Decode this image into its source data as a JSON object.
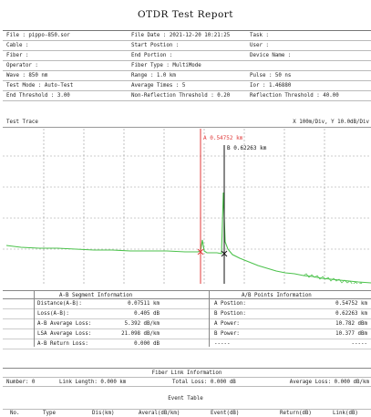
{
  "title": "OTDR Test Report",
  "params": {
    "rows": [
      [
        "File : pippo-850.sor",
        "File Date : 2021-12-20 10:21:25",
        "Task :"
      ],
      [
        "Cable :",
        "Start Postion :",
        "User :"
      ],
      [
        "Fiber :",
        "End Portion :",
        "Device Name :"
      ],
      [
        "Operator :",
        "Fiber Type : MultiMode",
        ""
      ],
      [
        "Wave : 850 nm",
        "Range : 1.0 km",
        "Pulse : 50 ns"
      ],
      [
        "Test Mode : Auto-Test",
        "Average Times : 5",
        "Ior : 1.46880"
      ],
      [
        "End Threshold : 3.00",
        "Non-Reflection Threshold : 0.20",
        "Reflection Threshold : 40.00"
      ]
    ]
  },
  "trace": {
    "label": "Test Trace",
    "scale": "X 100m/Div, Y 10.0dB/Div",
    "marker_a": "A 0.54752 km",
    "marker_b": "B 0.62263 km",
    "colors": {
      "trace": "#4cc24c",
      "marker_a": "#e03a3a",
      "marker_b": "#111111",
      "grid": "#999999"
    }
  },
  "ab_segment": {
    "title": "A-B Segment Information",
    "rows": [
      [
        "Distance(A-B):",
        "0.07511 km"
      ],
      [
        "Loss(A-B):",
        "0.405 dB"
      ],
      [
        "A-B Average Loss:",
        "5.392 dB/km"
      ],
      [
        "LSA Average Loss:",
        "21.098 dB/km"
      ],
      [
        "A-B Return Loss:",
        "0.000 dB"
      ]
    ]
  },
  "ab_points": {
    "title": "A/B Points Information",
    "rows": [
      [
        "A Postion:",
        "0.54752 km"
      ],
      [
        "B Postion:",
        "0.62263 km"
      ],
      [
        "A Power:",
        "10.782 dBm"
      ],
      [
        "B Power:",
        "10.377 dBm"
      ],
      [
        "-----",
        "-----"
      ]
    ]
  },
  "fiber_link": {
    "title": "Fiber Link Information",
    "number": "Number: 0",
    "length": "Link Length: 0.000 km",
    "total_loss": "Total Loss: 0.000 dB",
    "avg_loss": "Average Loss: 0.000 dB/km"
  },
  "event_table": {
    "title": "Event Table",
    "headers": [
      "No.",
      "Type",
      "Dis(km)",
      "Averal(dB/km)",
      "Event(dB)",
      "Return(dB)",
      "Link(dB)"
    ]
  }
}
